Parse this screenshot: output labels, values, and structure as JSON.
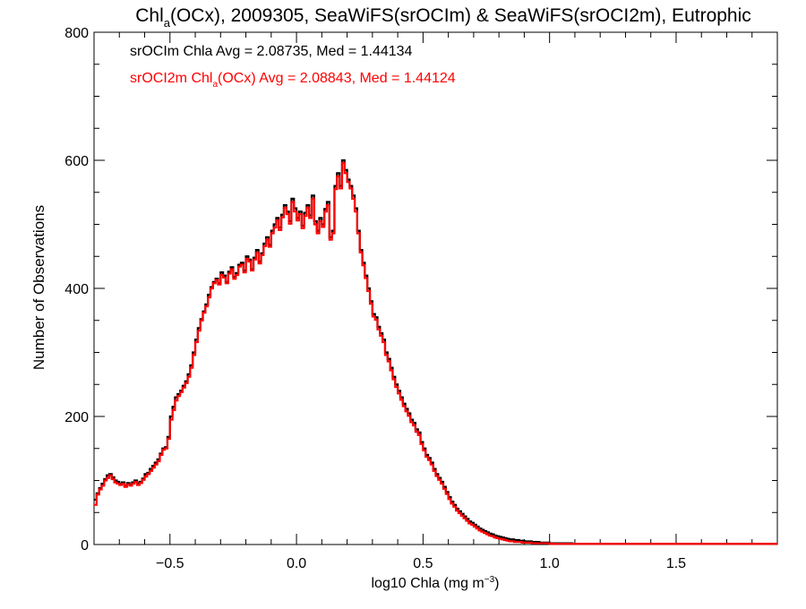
{
  "chart_data": {
    "type": "line",
    "title": {
      "prefix": "Chl",
      "sub": "a",
      "suffix": "(OCx), 2009305, SeaWiFS(srOCIm) & SeaWiFS(srOCI2m), Eutrophic"
    },
    "xlabel": {
      "prefix": "log10 Chla (mg m",
      "sup": "−3",
      "suffix": ")"
    },
    "ylabel": "Number of Observations",
    "xlim": [
      -0.8,
      1.9
    ],
    "ylim": [
      0,
      800
    ],
    "x_ticks": [
      {
        "value": -0.5,
        "label": "−0.5"
      },
      {
        "value": 0.0,
        "label": "0.0"
      },
      {
        "value": 0.5,
        "label": "0.5"
      },
      {
        "value": 1.0,
        "label": "1.0"
      },
      {
        "value": 1.5,
        "label": "1.5"
      }
    ],
    "y_ticks": [
      {
        "value": 0,
        "label": "0"
      },
      {
        "value": 200,
        "label": "200"
      },
      {
        "value": 400,
        "label": "400"
      },
      {
        "value": 600,
        "label": "600"
      },
      {
        "value": 800,
        "label": "800"
      }
    ],
    "grid": false,
    "legend_position": "top-left",
    "bin_width": 0.01,
    "series": [
      {
        "name": "srOCIm Chla",
        "color": "#000000",
        "label": "srOCIm Chla Avg = 2.08735, Med = 1.44134",
        "x_start": -0.8,
        "values": [
          70,
          80,
          88,
          95,
          102,
          108,
          110,
          105,
          100,
          98,
          95,
          97,
          92,
          96,
          94,
          97,
          100,
          96,
          98,
          103,
          110,
          112,
          118,
          123,
          128,
          133,
          142,
          150,
          152,
          168,
          200,
          215,
          230,
          235,
          240,
          248,
          255,
          266,
          280,
          300,
          320,
          338,
          352,
          364,
          375,
          390,
          402,
          410,
          415,
          408,
          425,
          420,
          410,
          426,
          433,
          418,
          424,
          437,
          440,
          428,
          450,
          445,
          430,
          448,
          460,
          442,
          455,
          470,
          480,
          468,
          490,
          500,
          510,
          495,
          515,
          530,
          520,
          505,
          540,
          525,
          510,
          520,
          498,
          518,
          530,
          514,
          545,
          505,
          490,
          510,
          500,
          524,
          535,
          480,
          490,
          560,
          580,
          560,
          600,
          585,
          570,
          560,
          545,
          525,
          490,
          460,
          440,
          420,
          400,
          380,
          360,
          355,
          340,
          330,
          320,
          300,
          290,
          276,
          262,
          250,
          240,
          230,
          220,
          212,
          205,
          195,
          190,
          180,
          175,
          160,
          150,
          140,
          135,
          128,
          118,
          110,
          104,
          98,
          90,
          82,
          74,
          67,
          62,
          56,
          52,
          48,
          44,
          40,
          36,
          34,
          31,
          28,
          25,
          23,
          21,
          19,
          17,
          16,
          14,
          13,
          12,
          11,
          10,
          9,
          8,
          8,
          7,
          7,
          6,
          6,
          5,
          5,
          5,
          4,
          4,
          4,
          3,
          3,
          3,
          3,
          2,
          2,
          2,
          2,
          2,
          2,
          2,
          2,
          2,
          1,
          1,
          1,
          1,
          1,
          1,
          1,
          1,
          1,
          1,
          1,
          1,
          1,
          1,
          1,
          1,
          1,
          1,
          1,
          1,
          1,
          1,
          1,
          1,
          1,
          1,
          1,
          1,
          1,
          1,
          1,
          1,
          1,
          1,
          1,
          1,
          1,
          1,
          1,
          1,
          1,
          1,
          1,
          1,
          1,
          1,
          1,
          1,
          1,
          1,
          1,
          1,
          1,
          1,
          1,
          1,
          1,
          1,
          1,
          1,
          1,
          1,
          1,
          1,
          1,
          1,
          1,
          1,
          1,
          1,
          1,
          1,
          1,
          1,
          1,
          1,
          1,
          1,
          1,
          1,
          1
        ]
      },
      {
        "name": "srOCI2m Chla(OCx)",
        "color": "#ff0000",
        "label_parts": {
          "prefix": "srOCI2m Chl",
          "sub": "a",
          "suffix": "(OCx) Avg = 2.08843, Med = 1.44124"
        },
        "x_start": -0.8,
        "values": [
          62,
          78,
          86,
          92,
          100,
          104,
          108,
          102,
          97,
          95,
          93,
          95,
          90,
          94,
          92,
          95,
          98,
          93,
          96,
          101,
          106,
          110,
          115,
          120,
          125,
          130,
          140,
          148,
          150,
          165,
          195,
          210,
          225,
          232,
          238,
          245,
          252,
          262,
          276,
          296,
          316,
          334,
          350,
          362,
          372,
          386,
          400,
          408,
          413,
          406,
          421,
          417,
          408,
          423,
          430,
          415,
          421,
          434,
          437,
          425,
          446,
          442,
          428,
          445,
          456,
          439,
          452,
          466,
          476,
          465,
          486,
          495,
          506,
          491,
          511,
          526,
          516,
          501,
          535,
          520,
          506,
          516,
          494,
          513,
          526,
          510,
          540,
          500,
          486,
          505,
          496,
          520,
          530,
          476,
          486,
          555,
          575,
          556,
          596,
          580,
          566,
          556,
          540,
          520,
          486,
          456,
          436,
          416,
          396,
          376,
          356,
          351,
          336,
          326,
          316,
          296,
          286,
          272,
          258,
          246,
          236,
          226,
          216,
          208,
          201,
          191,
          186,
          176,
          171,
          157,
          147,
          137,
          132,
          125,
          115,
          107,
          101,
          95,
          87,
          79,
          71,
          64,
          59,
          53,
          49,
          45,
          41,
          37,
          33,
          31,
          28,
          25,
          22,
          20,
          18,
          16,
          14,
          13,
          11,
          10,
          9,
          8,
          7,
          6,
          5,
          5,
          4,
          4,
          4,
          3,
          3,
          3,
          3,
          2,
          2,
          2,
          2,
          2,
          2,
          2,
          1,
          1,
          1,
          1,
          1,
          1,
          1,
          1,
          1,
          1,
          1,
          1,
          1,
          1,
          1,
          1,
          1,
          1,
          1,
          1,
          1,
          1,
          1,
          1,
          1,
          1,
          1,
          1,
          1,
          1,
          1,
          1,
          1,
          1,
          1,
          1,
          1,
          1,
          1,
          1,
          1,
          1,
          1,
          1,
          1,
          1,
          1,
          1,
          1,
          1,
          1,
          1,
          1,
          1,
          1,
          1,
          1,
          1,
          1,
          1,
          1,
          1,
          1,
          1,
          1,
          1,
          1,
          1,
          1,
          1,
          1,
          1,
          1,
          1,
          1,
          1,
          1,
          1,
          1,
          1,
          1,
          1,
          1,
          1,
          1,
          1,
          1,
          1,
          1,
          1,
          1,
          1
        ]
      }
    ]
  }
}
